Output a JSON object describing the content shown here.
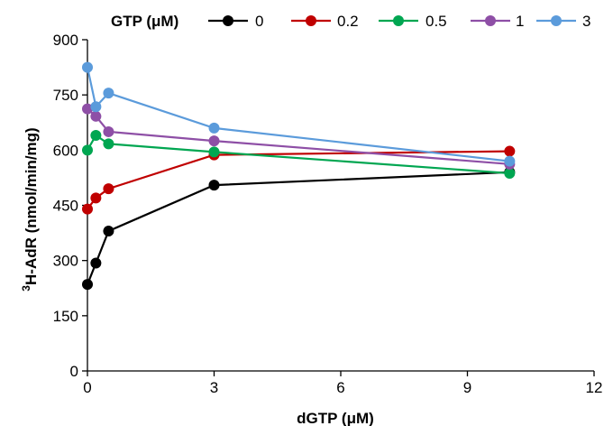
{
  "chart_data": {
    "type": "line",
    "xlabel": "dGTP (μM)",
    "ylabel_sup": "3",
    "ylabel": "H-AdR (nmol/min/mg)",
    "xlim": [
      0,
      12
    ],
    "ylim": [
      0,
      900
    ],
    "xticks": [
      0,
      3,
      6,
      9,
      12
    ],
    "yticks": [
      0,
      150,
      300,
      450,
      600,
      750,
      900
    ],
    "grid": false,
    "legend": {
      "title": "GTP  (μM)",
      "placement": "top"
    },
    "x": [
      0,
      0.2,
      0.5,
      3,
      10
    ],
    "series": [
      {
        "name": "0",
        "color": "#000000",
        "values": [
          235,
          293,
          380,
          505,
          540
        ]
      },
      {
        "name": "0.2",
        "color": "#c00000",
        "values": [
          440,
          470,
          495,
          587,
          597
        ]
      },
      {
        "name": "0.5",
        "color": "#00a651",
        "values": [
          600,
          640,
          617,
          595,
          537
        ]
      },
      {
        "name": "1",
        "color": "#8e4fa6",
        "values": [
          712,
          692,
          650,
          625,
          562
        ]
      },
      {
        "name": "3",
        "color": "#5b9bdb",
        "values": [
          825,
          718,
          755,
          660,
          570
        ]
      }
    ]
  }
}
